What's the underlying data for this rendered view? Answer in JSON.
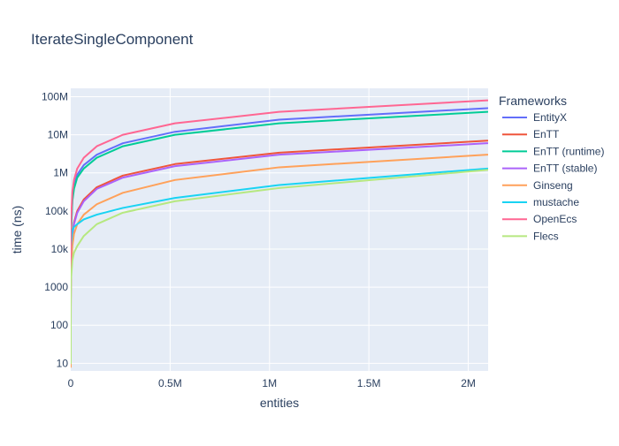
{
  "chart_data": {
    "type": "line",
    "title": "IterateSingleComponent",
    "xlabel": "entities",
    "ylabel": "time (ns)",
    "xscale": "linear",
    "yscale": "log",
    "xlim": [
      0,
      2100000
    ],
    "ylim_log10": [
      0.8,
      8.22
    ],
    "grid": true,
    "legend_title": "Frameworks",
    "legend_position": "right",
    "x_ticks": [
      {
        "value": 0,
        "label": "0"
      },
      {
        "value": 500000,
        "label": "0.5M"
      },
      {
        "value": 1000000,
        "label": "1M"
      },
      {
        "value": 1500000,
        "label": "1.5M"
      },
      {
        "value": 2000000,
        "label": "2M"
      }
    ],
    "y_ticks": [
      {
        "value": 10,
        "label": "10"
      },
      {
        "value": 100,
        "label": "100"
      },
      {
        "value": 1000,
        "label": "1000"
      },
      {
        "value": 10000,
        "label": "10k"
      },
      {
        "value": 100000,
        "label": "100k"
      },
      {
        "value": 1000000,
        "label": "1M"
      },
      {
        "value": 10000000,
        "label": "10M"
      },
      {
        "value": 100000000,
        "label": "100M"
      }
    ],
    "x": [
      1,
      10,
      100,
      1000,
      8192,
      16384,
      32768,
      65536,
      131072,
      262144,
      524288,
      1048576,
      2097152
    ],
    "series": [
      {
        "name": "EntityX",
        "color": "#636efa",
        "values": [
          30,
          220,
          2000,
          30000,
          200000,
          450000,
          900000,
          1600000,
          3000000,
          6000000,
          12000000,
          25000000,
          50000000
        ]
      },
      {
        "name": "EnTT",
        "color": "#ef553b",
        "values": [
          15,
          60,
          500,
          3500,
          25000,
          50000,
          100000,
          200000,
          420000,
          850000,
          1700000,
          3400000,
          7000000
        ]
      },
      {
        "name": "EnTT (runtime)",
        "color": "#00cc96",
        "values": [
          25,
          180,
          1700,
          25000,
          180000,
          380000,
          750000,
          1300000,
          2500000,
          5000000,
          10000000,
          20000000,
          40000000
        ]
      },
      {
        "name": "EnTT (stable)",
        "color": "#ab63fa",
        "values": [
          14,
          55,
          450,
          3200,
          22000,
          45000,
          90000,
          180000,
          380000,
          750000,
          1500000,
          3000000,
          6000000
        ]
      },
      {
        "name": "Ginseng",
        "color": "#ffa15a",
        "values": [
          8,
          40,
          300,
          2000,
          12000,
          25000,
          45000,
          80000,
          150000,
          300000,
          650000,
          1400000,
          3000000
        ]
      },
      {
        "name": "mustache",
        "color": "#19d3f3",
        "values": [
          60,
          300,
          2500,
          12000,
          30000,
          38000,
          45000,
          60000,
          80000,
          120000,
          220000,
          480000,
          1300000
        ]
      },
      {
        "name": "OpenEcs",
        "color": "#ff6692",
        "values": [
          40,
          300,
          3000,
          45000,
          320000,
          650000,
          1300000,
          2500000,
          5000000,
          10000000,
          20000000,
          40000000,
          80000000
        ]
      },
      {
        "name": "Flecs",
        "color": "#b6e880",
        "values": [
          10,
          40,
          300,
          1500,
          5000,
          8000,
          12000,
          22000,
          45000,
          90000,
          180000,
          400000,
          1200000
        ]
      }
    ]
  }
}
